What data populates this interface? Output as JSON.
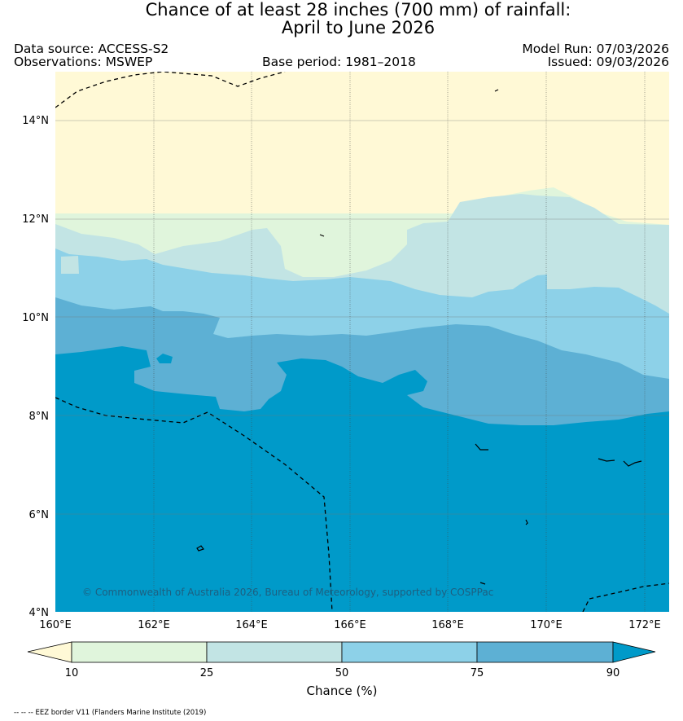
{
  "title": {
    "line1": "Chance of at least 28 inches (700  mm) of rainfall:",
    "line2": "April to June 2026"
  },
  "meta": {
    "data_source": "Data source: ACCESS-S2",
    "observations": "Observations: MSWEP",
    "base_period": "Base period: 1981–2018",
    "model_run": "Model Run: 07/03/2026",
    "issued": "Issued: 09/03/2026"
  },
  "map": {
    "lat_labels": [
      "14°N",
      "12°N",
      "10°N",
      "8°N",
      "6°N",
      "4°N"
    ],
    "lon_labels": [
      "160°E",
      "162°E",
      "164°E",
      "166°E",
      "168°E",
      "170°E",
      "172°E"
    ],
    "lon_range": [
      160,
      172.5
    ],
    "lat_range": [
      4,
      15
    ],
    "copyright": "© Commonwealth of Australia 2026, Bureau of Meteorology, supported by COSPPac"
  },
  "legend": {
    "ticks": [
      "10",
      "25",
      "50",
      "75",
      "90"
    ],
    "title": "Chance (%)",
    "colors": [
      "#fff9d6",
      "#e0f5dc",
      "#c2e4e4",
      "#8dd1e8",
      "#5db0d4",
      "#009ac9"
    ]
  },
  "footnote": "-- -- -- EEZ border V11 (Flanders Marine Institute (2019)"
}
